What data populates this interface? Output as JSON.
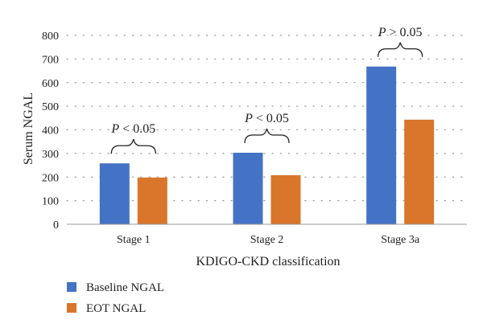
{
  "chart_data": {
    "type": "bar",
    "title": "",
    "xlabel": "KDIGO-CKD classification",
    "ylabel": "Serum NGAL",
    "ylim": [
      0,
      800
    ],
    "yticks": [
      "0",
      "100",
      "200",
      "300",
      "400",
      "500",
      "600",
      "700",
      "800"
    ],
    "categories": [
      "Stage 1",
      "Stage 2",
      "Stage 3a"
    ],
    "series": [
      {
        "name": "Baseline NGAL",
        "color": "#4472C4",
        "values": [
          258,
          303,
          668
        ]
      },
      {
        "name": "EOT NGAL",
        "color": "#D9762B",
        "values": [
          198,
          208,
          443
        ]
      }
    ],
    "annotations": [
      {
        "category": "Stage 1",
        "label": "P < 0.05"
      },
      {
        "category": "Stage 2",
        "label": "P < 0.05"
      },
      {
        "category": "Stage 3a",
        "label": "P > 0.05"
      }
    ],
    "grid": "horizontal dotted",
    "legend_position": "bottom-left"
  }
}
